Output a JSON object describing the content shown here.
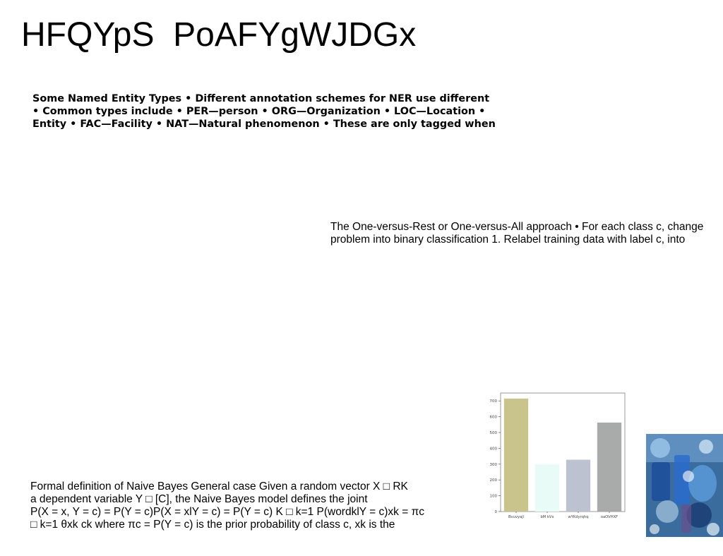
{
  "slide": {
    "title": "HFQYpS  PoAFYgWJDGx"
  },
  "ner_block": {
    "lines": [
      "Some Named Entity Types • Different annotation schemes for NER use different",
      "• Common types include • PER—person • ORG—Organization • LOC—Location •",
      "Entity • FAC—Facility • NAT—Natural phenomenon • These are only tagged when"
    ]
  },
  "ovr_block": {
    "lines": [
      "The One-versus-Rest or One-versus-All approach • For each class c, change",
      "problem into binary classification 1. Relabel training data with label c, into"
    ]
  },
  "naive_bayes_block": {
    "lines": [
      "Formal definition of Naive Bayes General case Given a random vector X □ RK",
      "a dependent variable Y □ [C], the Naive Bayes model defines the joint",
      "P(X = x, Y = c) = P(Y = c)P(X = xlY = c) = P(Y = c) K □ k=1 P(wordklY = c)xk = πc",
      "□ k=1 θxk ck where πc = P(Y = c) is the prior probability of class c, xk is the"
    ]
  },
  "chart_data": {
    "type": "bar",
    "categories": [
      "Bvuvyajl",
      "bM kVx",
      "wYKdyrqhq",
      "oaOVHXF"
    ],
    "values": [
      715,
      300,
      328,
      563
    ],
    "colors": [
      "#c8c48c",
      "#e8fbf6",
      "#bcc2d0",
      "#a8abaa"
    ],
    "ylim": [
      0,
      750
    ],
    "yticks": [
      0,
      100,
      200,
      300,
      400,
      500,
      600,
      700
    ],
    "title": "",
    "xlabel": "",
    "ylabel": "",
    "grid": false
  },
  "photo": {
    "icon": "laboratory-glassware-photo"
  }
}
